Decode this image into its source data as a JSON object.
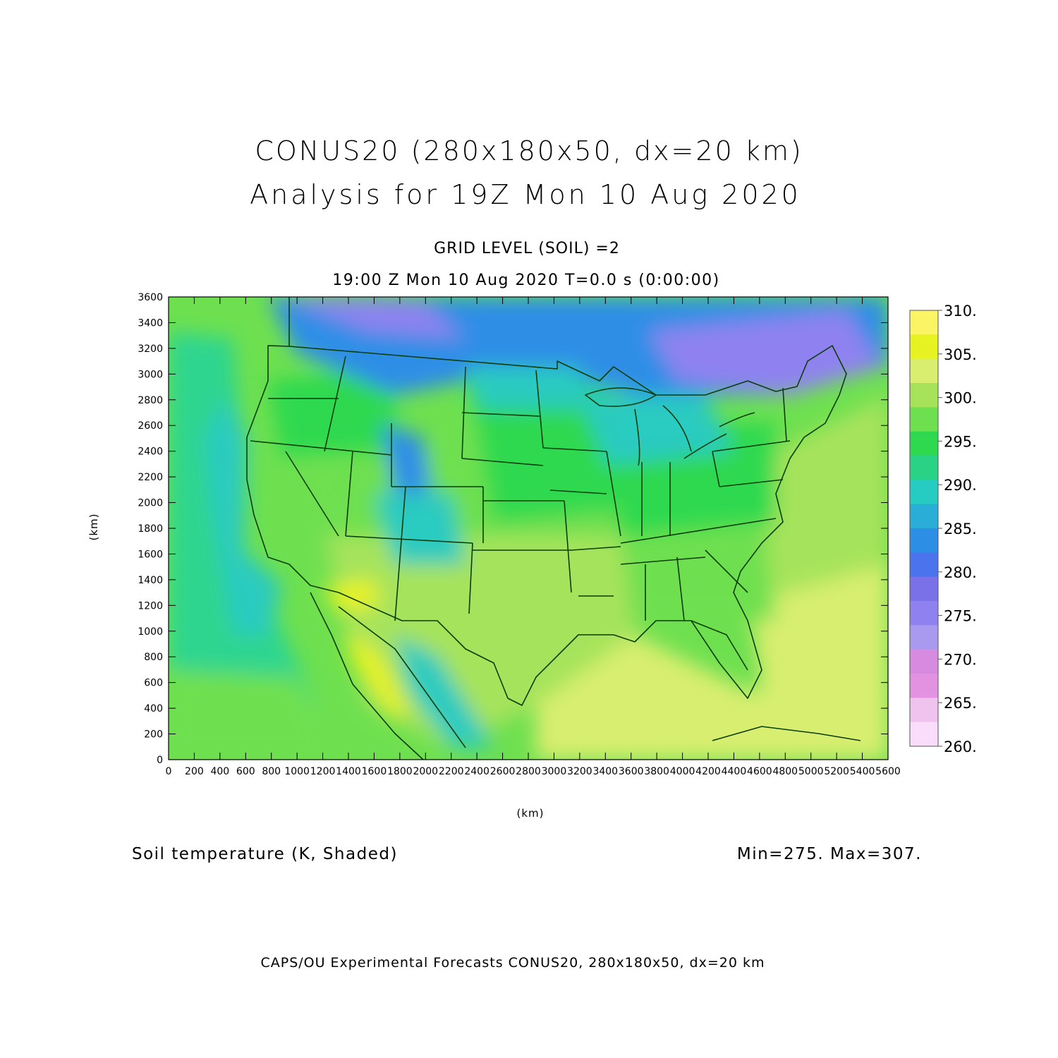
{
  "title": {
    "line1": "CONUS20 (280x180x50, dx=20 km)",
    "line2": "Analysis for 19Z Mon 10 Aug 2020"
  },
  "subtitle": {
    "level": "GRID LEVEL (SOIL) =2",
    "time": "19:00 Z Mon 10 Aug 2020    T=0.0 s (0:00:00)"
  },
  "axes": {
    "x_unit": "(km)",
    "y_unit": "(km)",
    "x_ticks": [
      "0",
      "200",
      "400",
      "600",
      "800",
      "1000",
      "1200",
      "1400",
      "1600",
      "1800",
      "2000",
      "2200",
      "2400",
      "2600",
      "2800",
      "3000",
      "3200",
      "3400",
      "3600",
      "3800",
      "4000",
      "4200",
      "4400",
      "4600",
      "4800",
      "5000",
      "5200",
      "5400",
      "5600"
    ],
    "y_ticks": [
      "0",
      "200",
      "400",
      "600",
      "800",
      "1000",
      "1200",
      "1400",
      "1600",
      "1800",
      "2000",
      "2200",
      "2400",
      "2600",
      "2800",
      "3000",
      "3200",
      "3400",
      "3600"
    ],
    "x_range": [
      0,
      5600
    ],
    "y_range": [
      0,
      3600
    ]
  },
  "colorbar": {
    "labels": [
      "310.",
      "305.",
      "300.",
      "295.",
      "290.",
      "285.",
      "280.",
      "275.",
      "270.",
      "265.",
      "260."
    ],
    "colors": [
      "#fbf566",
      "#e7f223",
      "#d9ee6e",
      "#a6e35b",
      "#6ee04f",
      "#2ed950",
      "#29d284",
      "#26ccc2",
      "#2aaed7",
      "#2d8ee6",
      "#4c73ee",
      "#7a71e8",
      "#8f82f0",
      "#a99af0",
      "#d68be0",
      "#e292e0",
      "#f0c2ee",
      "#fadcfb"
    ]
  },
  "field": {
    "label": "Soil temperature (K, Shaded)",
    "minmax": "Min=275.  Max=307."
  },
  "footer": "CAPS/OU Experimental Forecasts  CONUS20, 280x180x50, dx=20 km",
  "map_colors": {
    "ocean_cool": "#2fd58f",
    "ocean_teal": "#2acbc0",
    "ocean_warm": "#d8ee70",
    "land_warm": "#a6e35b",
    "land_mid": "#6ee04f",
    "land_green": "#2ed950",
    "cold_blue": "#2d8ee6",
    "cold_purple": "#8f82f0",
    "hot_yellow": "#e7f223",
    "border": "#0b3d0b"
  }
}
